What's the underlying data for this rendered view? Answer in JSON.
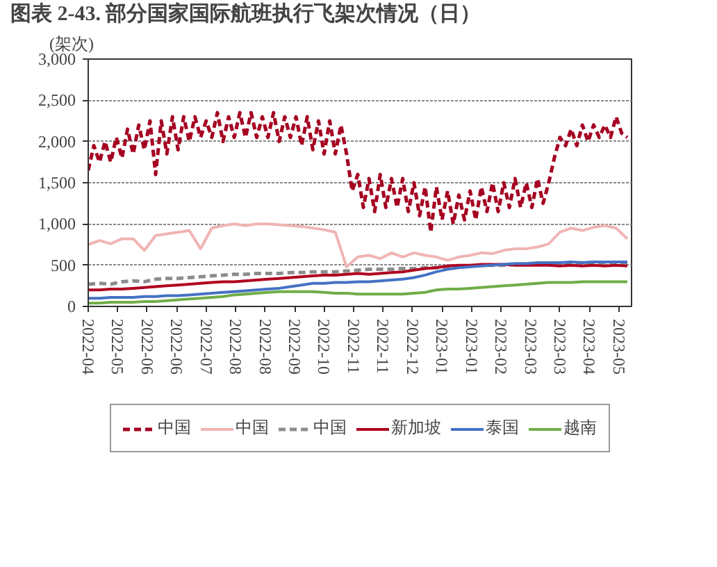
{
  "chart_data": {
    "type": "line",
    "title": "图表 2-43. 部分国家国际航班执行飞架次情况（日）",
    "ylabel": "(架次)",
    "x": [
      "2022-04-26",
      "2022-05-04",
      "2022-05-12",
      "2022-05-20",
      "2022-05-28",
      "2022-06-05",
      "2022-06-13",
      "2022-06-21",
      "2022-06-29",
      "2022-07-07",
      "2022-07-15",
      "2022-07-23",
      "2022-07-31",
      "2022-08-08",
      "2022-08-16",
      "2022-08-24",
      "2022-09-01",
      "2022-09-09",
      "2022-09-17",
      "2022-09-25",
      "2022-10-03",
      "2022-10-11",
      "2022-10-19",
      "2022-10-27",
      "2022-11-04",
      "2022-11-12",
      "2022-11-20",
      "2022-11-28",
      "2022-12-06",
      "2022-12-14",
      "2022-12-22",
      "2022-12-30",
      "2023-01-07",
      "2023-01-15",
      "2023-01-23",
      "2023-01-31",
      "2023-02-08",
      "2023-02-16",
      "2023-02-24",
      "2023-03-04",
      "2023-03-12",
      "2023-03-20",
      "2023-03-28",
      "2023-04-05",
      "2023-04-13",
      "2023-04-21",
      "2023-04-29",
      "2023-05-07",
      "2023-05-15"
    ],
    "series": [
      {
        "name": "中国",
        "color": "#a50021",
        "line_style": "dashed",
        "x": [
          "2022-04-26",
          "2022-04-30",
          "2022-05-04",
          "2022-05-08",
          "2022-05-12",
          "2022-05-16",
          "2022-05-20",
          "2022-05-24",
          "2022-05-28",
          "2022-06-01",
          "2022-06-05",
          "2022-06-09",
          "2022-06-13",
          "2022-06-17",
          "2022-06-21",
          "2022-06-25",
          "2022-06-29",
          "2022-07-03",
          "2022-07-07",
          "2022-07-11",
          "2022-07-15",
          "2022-07-19",
          "2022-07-23",
          "2022-07-27",
          "2022-07-31",
          "2022-08-04",
          "2022-08-08",
          "2022-08-12",
          "2022-08-16",
          "2022-08-20",
          "2022-08-24",
          "2022-08-28",
          "2022-09-01",
          "2022-09-05",
          "2022-09-09",
          "2022-09-13",
          "2022-09-17",
          "2022-09-21",
          "2022-09-25",
          "2022-09-29",
          "2022-10-03",
          "2022-10-07",
          "2022-10-11",
          "2022-10-15",
          "2022-10-19",
          "2022-10-23",
          "2022-10-27",
          "2022-10-31",
          "2022-11-04",
          "2022-11-08",
          "2022-11-12",
          "2022-11-16",
          "2022-11-20",
          "2022-11-24",
          "2022-11-28",
          "2022-12-02",
          "2022-12-06",
          "2022-12-10",
          "2022-12-14",
          "2022-12-18",
          "2022-12-22",
          "2022-12-26",
          "2022-12-30",
          "2023-01-03",
          "2023-01-07",
          "2023-01-11",
          "2023-01-15",
          "2023-01-19",
          "2023-01-23",
          "2023-01-27",
          "2023-01-31",
          "2023-02-04",
          "2023-02-08",
          "2023-02-12",
          "2023-02-16",
          "2023-02-20",
          "2023-02-24",
          "2023-02-28",
          "2023-03-04",
          "2023-03-08",
          "2023-03-12",
          "2023-03-16",
          "2023-03-20",
          "2023-03-24",
          "2023-03-28",
          "2023-04-01",
          "2023-04-05",
          "2023-04-09",
          "2023-04-13",
          "2023-04-17",
          "2023-04-21",
          "2023-04-25",
          "2023-04-29",
          "2023-05-03",
          "2023-05-07",
          "2023-05-11",
          "2023-05-15"
        ],
        "values": [
          1650,
          1950,
          1750,
          2000,
          1750,
          2050,
          1800,
          2150,
          1850,
          2200,
          1900,
          2250,
          1600,
          2250,
          1850,
          2300,
          1900,
          2300,
          2000,
          2300,
          2050,
          2250,
          2050,
          2350,
          2000,
          2300,
          2050,
          2350,
          2050,
          2350,
          2050,
          2300,
          2050,
          2350,
          2000,
          2300,
          2050,
          2300,
          1950,
          2300,
          1900,
          2250,
          1850,
          2250,
          1850,
          2200,
          1850,
          1400,
          1600,
          1200,
          1550,
          1150,
          1600,
          1200,
          1550,
          1200,
          1550,
          1150,
          1500,
          1100,
          1450,
          900,
          1450,
          1050,
          1400,
          1000,
          1350,
          1050,
          1400,
          1050,
          1450,
          1150,
          1500,
          1150,
          1500,
          1200,
          1550,
          1200,
          1500,
          1200,
          1550,
          1250,
          1500,
          1800,
          2050,
          1950,
          2150,
          1950,
          2200,
          2000,
          2200,
          2050,
          2200,
          2050,
          2300,
          2100,
          2050
        ]
      },
      {
        "name": "中国",
        "color": "#f0b4b4",
        "values": [
          750,
          800,
          760,
          820,
          820,
          680,
          860,
          880,
          900,
          920,
          700,
          950,
          980,
          1000,
          980,
          1000,
          1000,
          990,
          980,
          970,
          950,
          930,
          900,
          480,
          600,
          620,
          580,
          650,
          600,
          650,
          620,
          600,
          560,
          600,
          620,
          650,
          640,
          680,
          700,
          700,
          720,
          760,
          900,
          950,
          920,
          960,
          980,
          950,
          820
        ]
      },
      {
        "name": "中国",
        "color": "#8c8c8c",
        "line_style": "dashed",
        "values": [
          270,
          280,
          270,
          300,
          310,
          300,
          330,
          340,
          340,
          350,
          360,
          370,
          380,
          390,
          390,
          400,
          400,
          400,
          410,
          410,
          420,
          420,
          420,
          430,
          440,
          450,
          450,
          450,
          460,
          460,
          470,
          470,
          480,
          490,
          490,
          500,
          500,
          500,
          510,
          510,
          510,
          520,
          520,
          520,
          530,
          530,
          530,
          530,
          530
        ]
      },
      {
        "name": "新加坡",
        "color": "#b00020",
        "values": [
          200,
          200,
          210,
          210,
          220,
          230,
          240,
          250,
          260,
          270,
          280,
          290,
          300,
          300,
          310,
          320,
          330,
          340,
          350,
          360,
          370,
          380,
          380,
          390,
          400,
          390,
          400,
          410,
          420,
          440,
          460,
          470,
          490,
          500,
          500,
          510,
          510,
          510,
          500,
          500,
          500,
          500,
          490,
          500,
          490,
          500,
          490,
          500,
          490
        ]
      },
      {
        "name": "泰国",
        "color": "#4472c4",
        "values": [
          100,
          100,
          110,
          110,
          110,
          120,
          120,
          130,
          130,
          140,
          150,
          160,
          170,
          180,
          190,
          200,
          210,
          220,
          240,
          260,
          280,
          280,
          290,
          290,
          300,
          300,
          310,
          320,
          330,
          350,
          380,
          420,
          450,
          470,
          480,
          490,
          500,
          510,
          520,
          520,
          530,
          530,
          530,
          540,
          530,
          540,
          540,
          540,
          540
        ]
      },
      {
        "name": "越南",
        "color": "#70ad47",
        "values": [
          40,
          40,
          50,
          50,
          50,
          60,
          60,
          70,
          80,
          90,
          100,
          110,
          120,
          140,
          150,
          160,
          170,
          180,
          180,
          180,
          180,
          170,
          160,
          160,
          150,
          150,
          150,
          150,
          150,
          160,
          170,
          200,
          210,
          210,
          220,
          230,
          240,
          250,
          260,
          270,
          280,
          290,
          290,
          290,
          300,
          300,
          300,
          300,
          300
        ]
      }
    ],
    "xlim": [
      "2022-04-26",
      "2023-05-18"
    ],
    "xticks": [
      {
        "value": "2022-04-26",
        "label": "2022-04"
      },
      {
        "value": "2022-05-17",
        "label": "2022-05"
      },
      {
        "value": "2022-06-07",
        "label": "2022-06"
      },
      {
        "value": "2022-06-28",
        "label": "2022-06"
      },
      {
        "value": "2022-07-19",
        "label": "2022-07"
      },
      {
        "value": "2022-08-09",
        "label": "2022-08"
      },
      {
        "value": "2022-08-30",
        "label": "2022-08"
      },
      {
        "value": "2022-09-20",
        "label": "2022-09"
      },
      {
        "value": "2022-10-11",
        "label": "2022-10"
      },
      {
        "value": "2022-11-01",
        "label": "2022-11"
      },
      {
        "value": "2022-11-22",
        "label": "2022-11"
      },
      {
        "value": "2022-12-13",
        "label": "2022-12"
      },
      {
        "value": "2023-01-03",
        "label": "2023-01"
      },
      {
        "value": "2023-01-24",
        "label": "2023-01"
      },
      {
        "value": "2023-02-14",
        "label": "2023-02"
      },
      {
        "value": "2023-03-07",
        "label": "2023-03"
      },
      {
        "value": "2023-03-28",
        "label": "2023-03"
      },
      {
        "value": "2023-04-18",
        "label": "2023-04"
      },
      {
        "value": "2023-05-09",
        "label": "2023-05"
      }
    ],
    "ylim": [
      0,
      3000
    ],
    "yticks": [
      {
        "value": 0,
        "label": "0"
      },
      {
        "value": 500,
        "label": "500"
      },
      {
        "value": 1000,
        "label": "1,000"
      },
      {
        "value": 1500,
        "label": "1,500"
      },
      {
        "value": 2000,
        "label": "2,000"
      },
      {
        "value": 2500,
        "label": "2,500"
      },
      {
        "value": 3000,
        "label": "3,000"
      }
    ],
    "grid": "y",
    "legend": "bottom"
  }
}
